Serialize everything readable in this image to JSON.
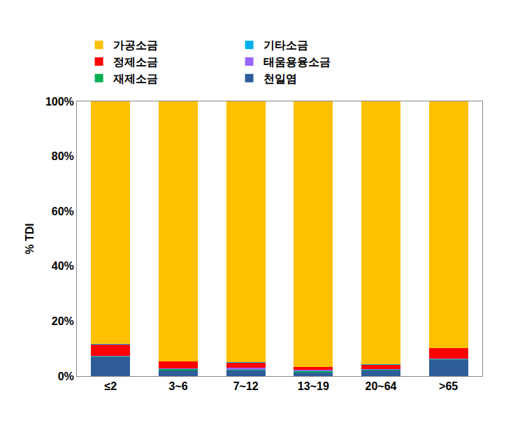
{
  "chart_data": {
    "type": "bar",
    "stacked": true,
    "y_label": "% TDI",
    "categories": [
      "≤2",
      "3~6",
      "7~12",
      "13~19",
      "20~64",
      ">65"
    ],
    "series": [
      {
        "name": "천일염",
        "color": "#2e5d9a",
        "values": [
          6.8,
          2.0,
          2.0,
          1.2,
          2.0,
          5.8
        ]
      },
      {
        "name": "재제소금",
        "color": "#00b050",
        "values": [
          0.2,
          0.5,
          0.3,
          0.5,
          0.3,
          0.2
        ]
      },
      {
        "name": "태움용융소금",
        "color": "#9966ff",
        "values": [
          0.5,
          0.3,
          0.8,
          0.5,
          0.3,
          0.3
        ]
      },
      {
        "name": "정제소금",
        "color": "#ff0000",
        "values": [
          4.0,
          2.5,
          1.8,
          1.0,
          1.5,
          3.8
        ]
      },
      {
        "name": "기타소금",
        "color": "#00b0f0",
        "values": [
          0.1,
          0.1,
          0.1,
          0.1,
          0.1,
          0.1
        ]
      },
      {
        "name": "가공소금",
        "color": "#ffc000",
        "values": [
          88.4,
          94.6,
          95.0,
          96.7,
          95.8,
          89.8
        ]
      }
    ],
    "ylim": [
      0,
      100
    ],
    "yticks": [
      {
        "value": 0,
        "label": "0%"
      },
      {
        "value": 20,
        "label": "20%"
      },
      {
        "value": 40,
        "label": "40%"
      },
      {
        "value": 60,
        "label": "60%"
      },
      {
        "value": 80,
        "label": "80%"
      },
      {
        "value": 100,
        "label": "100%"
      }
    ],
    "grid": false,
    "legend": "top"
  }
}
